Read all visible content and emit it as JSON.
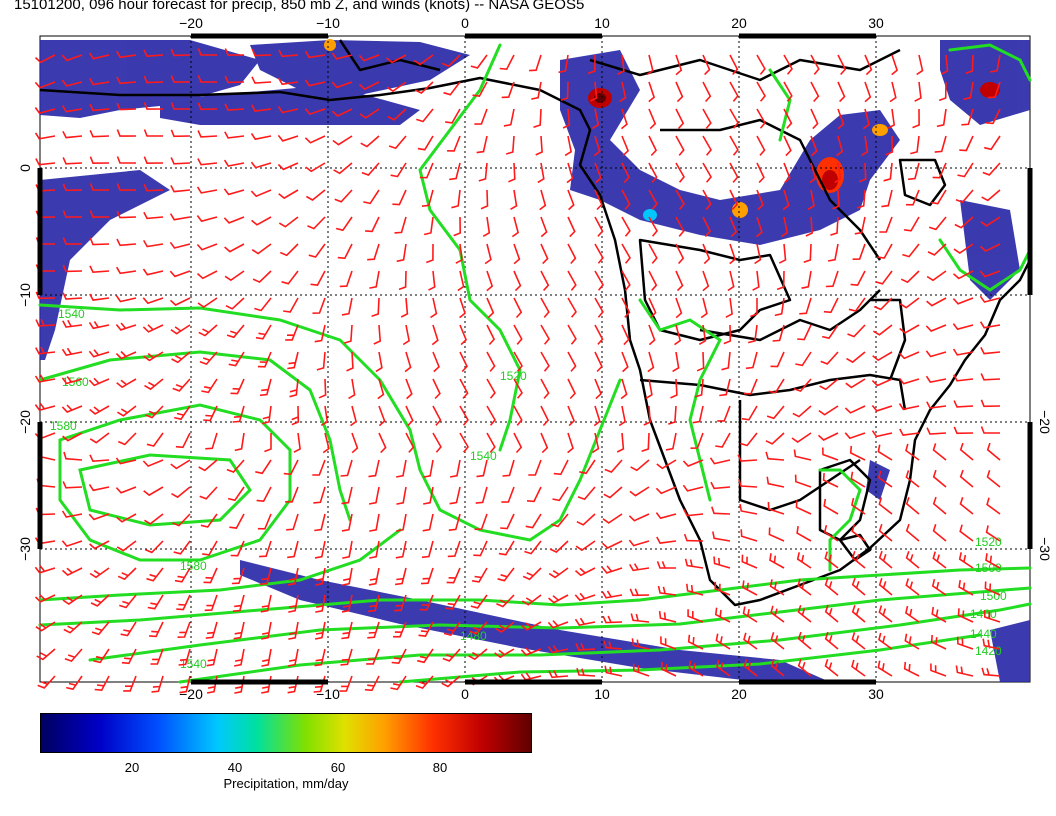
{
  "title": "15101200, 096 hour forecast for precip, 850 mb Z, and winds (knots) -- NASA GEOS5",
  "map": {
    "lon_ticks_top": [
      "−20",
      "−10",
      "0",
      "10",
      "20",
      "30"
    ],
    "lon_ticks_bottom": [
      "−20",
      "−10",
      "0",
      "10",
      "20",
      "30"
    ],
    "lat_ticks_left": [
      "0",
      "−10",
      "−20",
      "−30"
    ],
    "lat_ticks_right": [
      "−20",
      "−30"
    ],
    "contour_labels": [
      "1540",
      "1560",
      "1580",
      "1520",
      "1500",
      "1480",
      "1460",
      "1440",
      "1420",
      "1540",
      "1580",
      "1540",
      "1520",
      "1500"
    ],
    "colors": {
      "precip_dark": "#2a2aa8",
      "wind_barb": "#ff1a1a",
      "contour": "#22dd22",
      "coast": "#000000"
    }
  },
  "colorbar": {
    "ticks": [
      "20",
      "40",
      "60",
      "80"
    ],
    "label": "Precipitation, mm/day"
  }
}
